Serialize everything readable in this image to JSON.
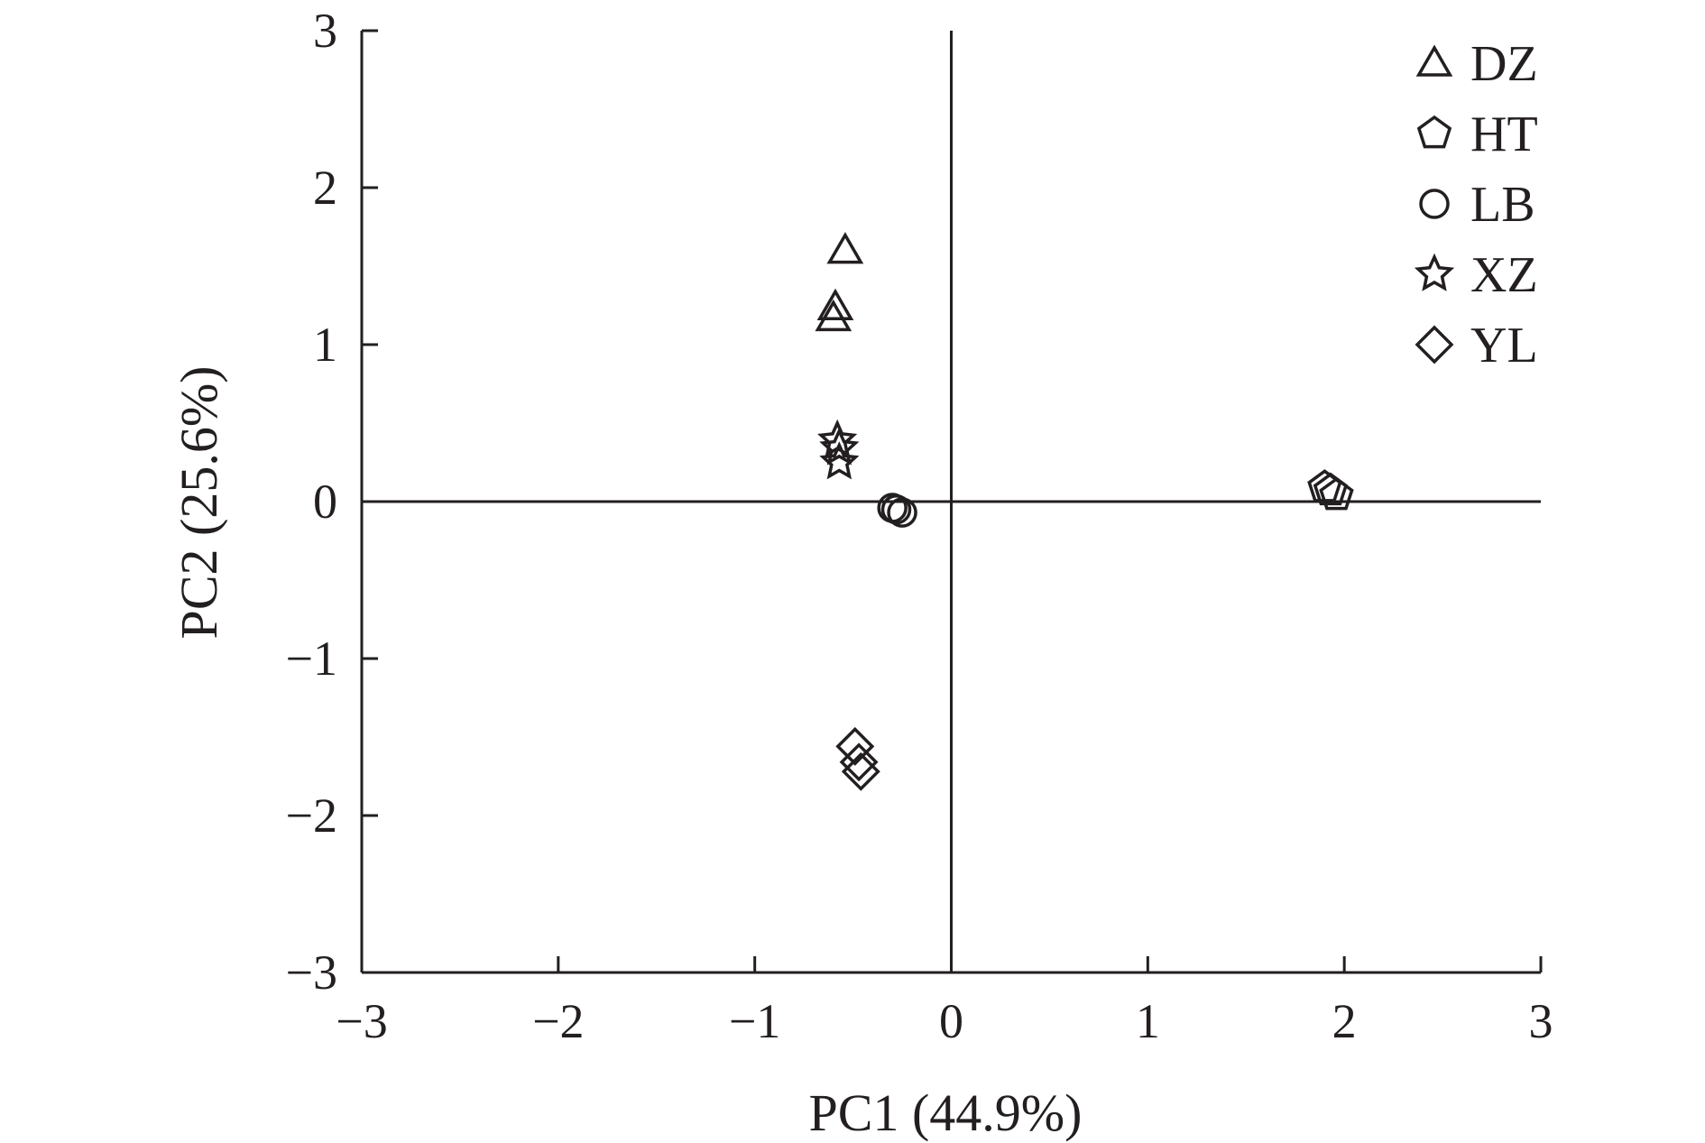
{
  "chart_data": {
    "type": "scatter",
    "xlabel": "PC1 (44.9%)",
    "ylabel": "PC2 (25.6%)",
    "xlim": [
      -3,
      3
    ],
    "ylim": [
      -3,
      3
    ],
    "x_ticks": [
      -3,
      -2,
      -1,
      0,
      1,
      2,
      3
    ],
    "y_ticks": [
      -3,
      -2,
      -1,
      0,
      1,
      2,
      3
    ],
    "x_tick_labels": [
      "−3",
      "−2",
      "−1",
      "0",
      "1",
      "2",
      "3"
    ],
    "y_tick_labels": [
      "−3",
      "−2",
      "−1",
      "0",
      "1",
      "2",
      "3"
    ],
    "grid": false,
    "zero_lines": true,
    "legend_position": "top-right",
    "marker_color": "#231f20",
    "series": [
      {
        "name": "DZ",
        "marker": "triangle",
        "points": [
          [
            -0.54,
            1.6
          ],
          [
            -0.59,
            1.24
          ],
          [
            -0.6,
            1.17
          ]
        ]
      },
      {
        "name": "HT",
        "marker": "pentagon",
        "points": [
          [
            1.9,
            0.09
          ],
          [
            1.93,
            0.07
          ],
          [
            1.96,
            0.04
          ]
        ]
      },
      {
        "name": "LB",
        "marker": "circle",
        "points": [
          [
            -0.3,
            -0.04
          ],
          [
            -0.28,
            -0.05
          ],
          [
            -0.25,
            -0.07
          ]
        ]
      },
      {
        "name": "XZ",
        "marker": "star",
        "points": [
          [
            -0.58,
            0.39
          ],
          [
            -0.57,
            0.34
          ],
          [
            -0.57,
            0.25
          ]
        ]
      },
      {
        "name": "YL",
        "marker": "diamond",
        "points": [
          [
            -0.49,
            -1.56
          ],
          [
            -0.47,
            -1.66
          ],
          [
            -0.46,
            -1.72
          ]
        ]
      }
    ]
  }
}
